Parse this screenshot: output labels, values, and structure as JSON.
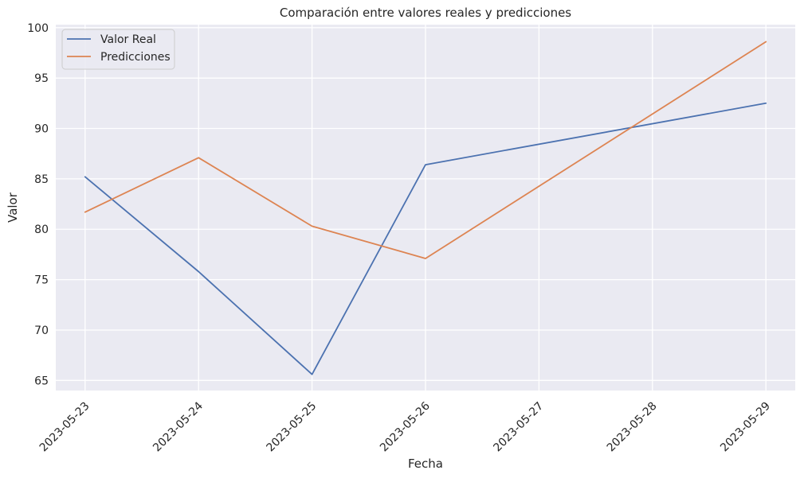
{
  "chart_data": {
    "type": "line",
    "title": "Comparación entre valores reales y predicciones",
    "xlabel": "Fecha",
    "ylabel": "Valor",
    "categories": [
      "2023-05-23",
      "2023-05-24",
      "2023-05-25",
      "2023-05-26",
      "2023-05-27",
      "2023-05-28",
      "2023-05-29"
    ],
    "series": [
      {
        "name": "Valor Real",
        "color": "#4c72b0",
        "points": [
          [
            "2023-05-23",
            85.2
          ],
          [
            "2023-05-24",
            75.8
          ],
          [
            "2023-05-25",
            65.6
          ],
          [
            "2023-05-26",
            86.4
          ],
          [
            "2023-05-29",
            92.5
          ]
        ]
      },
      {
        "name": "Predicciones",
        "color": "#dd8452",
        "points": [
          [
            "2023-05-23",
            81.7
          ],
          [
            "2023-05-24",
            87.1
          ],
          [
            "2023-05-25",
            80.3
          ],
          [
            "2023-05-26",
            77.1
          ],
          [
            "2023-05-29",
            98.6
          ]
        ]
      }
    ],
    "yticks": [
      65,
      70,
      75,
      80,
      85,
      90,
      95,
      100
    ],
    "ylim": [
      64,
      100.3
    ],
    "xlim": [
      "2023-05-22 17:48",
      "2023-05-29 06:12"
    ],
    "grid": true,
    "legend_position": "upper-left",
    "background": "#eaeaf2",
    "grid_color": "#ffffff"
  }
}
